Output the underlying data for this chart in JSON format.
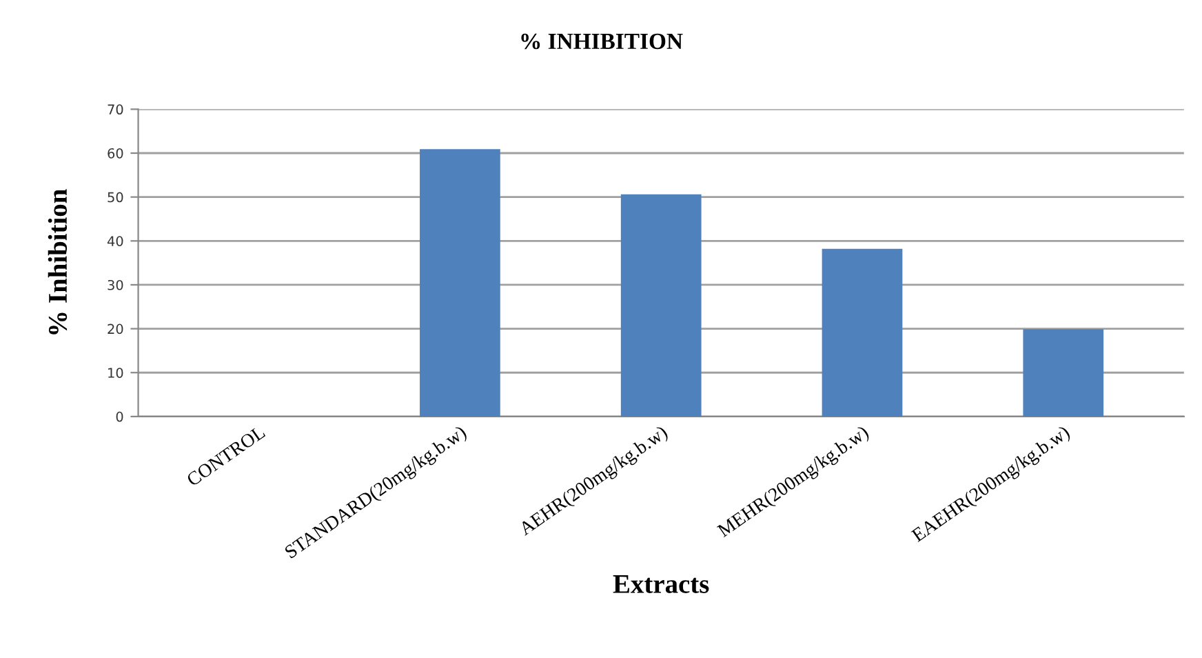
{
  "chart_data": {
    "type": "bar",
    "title": "% INHIBITION",
    "xlabel": "Extracts",
    "ylabel": "% Inhibition",
    "categories": [
      "CONTROL",
      "STANDARD(20mg/kg.b.w)",
      "AEHR(200mg/kg.b.w)",
      "MEHR(200mg/kg.b.w)",
      "EAEHR(200mg/kg.b.w)"
    ],
    "values": [
      0,
      60.9,
      50.6,
      38.2,
      19.9
    ],
    "color": "#4f81bd",
    "ylim": [
      0,
      70
    ],
    "yticks": [
      0,
      10,
      20,
      30,
      40,
      50,
      60,
      70
    ],
    "grid": "y"
  }
}
